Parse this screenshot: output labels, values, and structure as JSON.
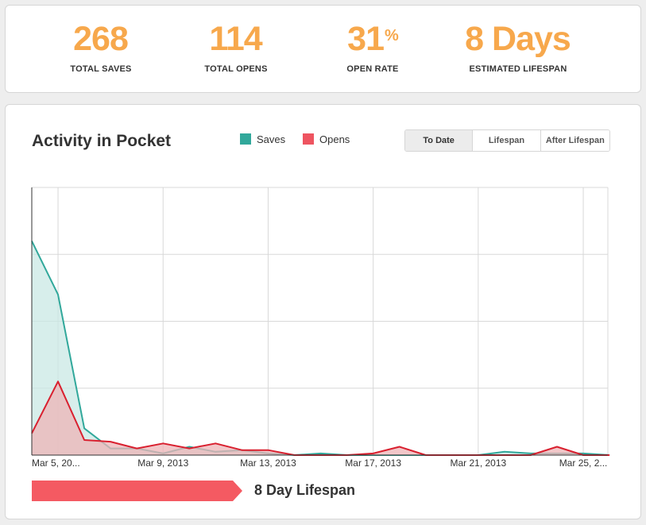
{
  "stats": [
    {
      "value": "268",
      "suffix": "",
      "label": "TOTAL SAVES"
    },
    {
      "value": "114",
      "suffix": "",
      "label": "TOTAL OPENS"
    },
    {
      "value": "31",
      "suffix": "%",
      "label": "OPEN RATE"
    },
    {
      "value": "8 Days",
      "suffix": "",
      "label": "ESTIMATED LIFESPAN"
    }
  ],
  "activity": {
    "title": "Activity in Pocket",
    "legend": [
      {
        "name": "Saves",
        "color": "#31a89b"
      },
      {
        "name": "Opens",
        "color": "#ee5460"
      }
    ],
    "tabs": [
      {
        "label": "To Date",
        "active": true
      },
      {
        "label": "Lifespan",
        "active": false
      },
      {
        "label": "After Lifespan",
        "active": false
      }
    ],
    "lifespan_label": "8 Day Lifespan",
    "lifespan_color": "#f45a62"
  },
  "colors": {
    "accent": "#f7a84c",
    "saves": "#31a89b",
    "saves_fill": "#c9e8e4",
    "opens": "#d9202f",
    "opens_fill": "#eeb4b7",
    "grid": "#d8d8d8"
  },
  "chart_data": {
    "type": "area",
    "x_tick_labels": [
      "Mar 5, 20...",
      "Mar 9, 2013",
      "Mar 13, 2013",
      "Mar 17, 2013",
      "Mar 21, 2013",
      "Mar 25, 2..."
    ],
    "x_tick_days": [
      4,
      8,
      12,
      16,
      20,
      24
    ],
    "x": [
      3,
      4,
      5,
      6,
      7,
      8,
      9,
      10,
      11,
      12,
      13,
      14,
      15,
      16,
      17,
      18,
      19,
      20,
      21,
      22,
      23,
      24,
      25
    ],
    "ylim": [
      0,
      80
    ],
    "grid": true,
    "series": [
      {
        "name": "Saves",
        "values": [
          64,
          48,
          8,
          2,
          2,
          0.5,
          2.5,
          1,
          1.5,
          0.5,
          0,
          0.5,
          0,
          0,
          0,
          0,
          0,
          0,
          1,
          0.5,
          0.5,
          0.5,
          0
        ]
      },
      {
        "name": "Opens",
        "values": [
          6.5,
          22,
          4.5,
          4,
          2,
          3.5,
          2,
          3.5,
          1.5,
          1.5,
          0,
          0,
          0,
          0.5,
          2.5,
          0,
          0,
          0,
          0,
          0,
          2.5,
          0,
          0
        ]
      }
    ]
  }
}
